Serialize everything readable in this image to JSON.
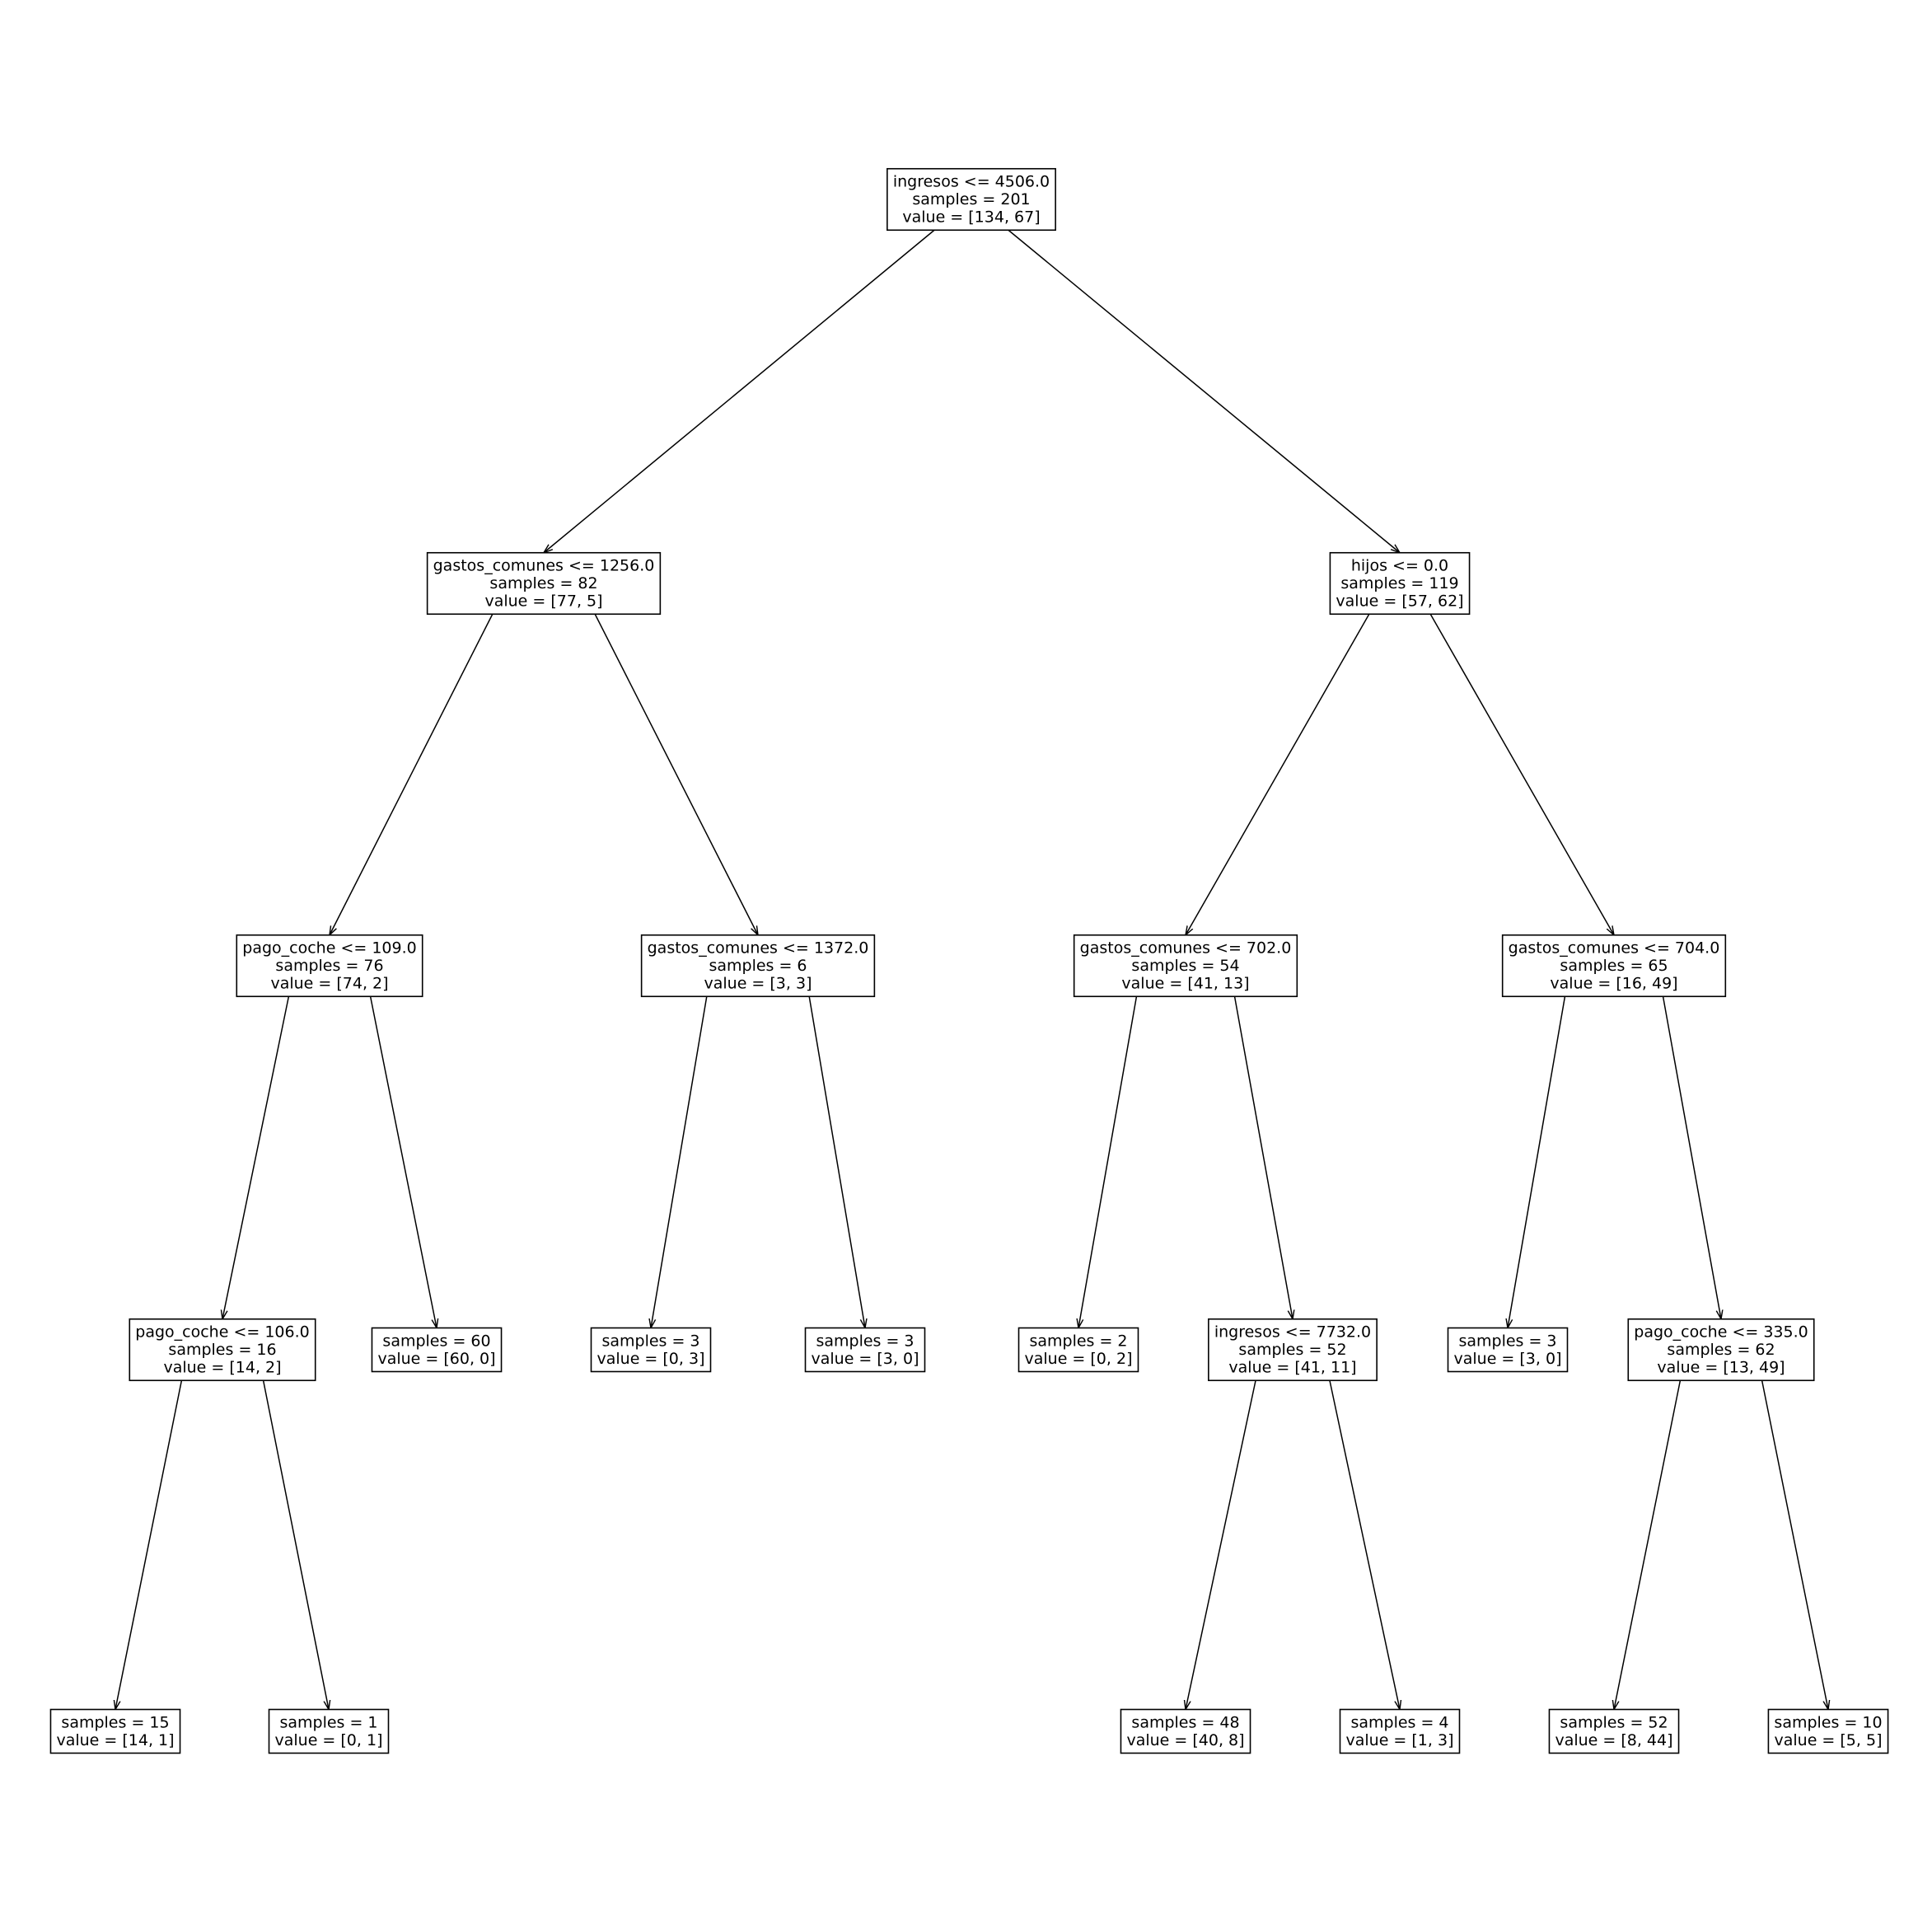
{
  "tree": {
    "nodes": [
      {
        "id": "n0",
        "lines": [
          "ingresos <= 4506.0",
          "samples = 201",
          "value = [134, 67]"
        ]
      },
      {
        "id": "n1",
        "lines": [
          "gastos_comunes <= 1256.0",
          "samples = 82",
          "value = [77, 5]"
        ]
      },
      {
        "id": "n2",
        "lines": [
          "pago_coche <= 109.0",
          "samples = 76",
          "value = [74, 2]"
        ]
      },
      {
        "id": "n3",
        "lines": [
          "pago_coche <= 106.0",
          "samples = 16",
          "value = [14, 2]"
        ]
      },
      {
        "id": "n4",
        "lines": [
          "samples = 15",
          "value = [14, 1]"
        ]
      },
      {
        "id": "n5",
        "lines": [
          "samples = 1",
          "value = [0, 1]"
        ]
      },
      {
        "id": "n6",
        "lines": [
          "samples = 60",
          "value = [60, 0]"
        ]
      },
      {
        "id": "n7",
        "lines": [
          "gastos_comunes <= 1372.0",
          "samples = 6",
          "value = [3, 3]"
        ]
      },
      {
        "id": "n8",
        "lines": [
          "samples = 3",
          "value = [0, 3]"
        ]
      },
      {
        "id": "n9",
        "lines": [
          "samples = 3",
          "value = [3, 0]"
        ]
      },
      {
        "id": "n10",
        "lines": [
          "hijos <= 0.0",
          "samples = 119",
          "value = [57, 62]"
        ]
      },
      {
        "id": "n11",
        "lines": [
          "gastos_comunes <= 702.0",
          "samples = 54",
          "value = [41, 13]"
        ]
      },
      {
        "id": "n12",
        "lines": [
          "samples = 2",
          "value = [0, 2]"
        ]
      },
      {
        "id": "n13",
        "lines": [
          "ingresos <= 7732.0",
          "samples = 52",
          "value = [41, 11]"
        ]
      },
      {
        "id": "n14",
        "lines": [
          "samples = 48",
          "value = [40, 8]"
        ]
      },
      {
        "id": "n15",
        "lines": [
          "samples = 4",
          "value = [1, 3]"
        ]
      },
      {
        "id": "n16",
        "lines": [
          "gastos_comunes <= 704.0",
          "samples = 65",
          "value = [16, 49]"
        ]
      },
      {
        "id": "n17",
        "lines": [
          "samples = 3",
          "value = [3, 0]"
        ]
      },
      {
        "id": "n18",
        "lines": [
          "pago_coche <= 335.0",
          "samples = 62",
          "value = [13, 49]"
        ]
      },
      {
        "id": "n19",
        "lines": [
          "samples = 52",
          "value = [8, 44]"
        ]
      },
      {
        "id": "n20",
        "lines": [
          "samples = 10",
          "value = [5, 5]"
        ]
      }
    ],
    "edges": [
      [
        "n0",
        "n1"
      ],
      [
        "n0",
        "n10"
      ],
      [
        "n1",
        "n2"
      ],
      [
        "n1",
        "n7"
      ],
      [
        "n2",
        "n3"
      ],
      [
        "n2",
        "n6"
      ],
      [
        "n3",
        "n4"
      ],
      [
        "n3",
        "n5"
      ],
      [
        "n7",
        "n8"
      ],
      [
        "n7",
        "n9"
      ],
      [
        "n10",
        "n11"
      ],
      [
        "n10",
        "n16"
      ],
      [
        "n11",
        "n12"
      ],
      [
        "n11",
        "n13"
      ],
      [
        "n13",
        "n14"
      ],
      [
        "n13",
        "n15"
      ],
      [
        "n16",
        "n17"
      ],
      [
        "n16",
        "n18"
      ],
      [
        "n18",
        "n19"
      ],
      [
        "n18",
        "n20"
      ]
    ]
  }
}
